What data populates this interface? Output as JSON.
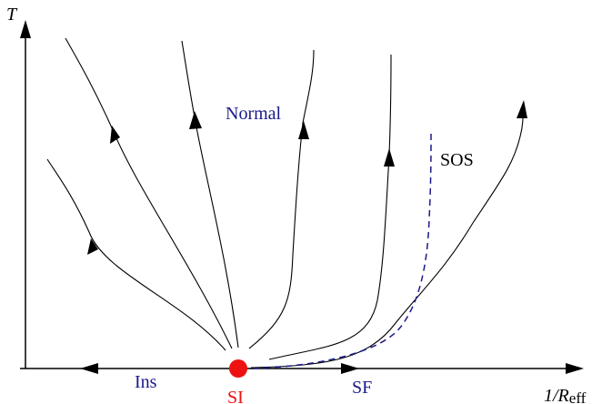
{
  "axes": {
    "y_label": "T",
    "x_label_main": "1/R",
    "x_label_sub": "eff"
  },
  "labels": {
    "normal": "Normal",
    "sos": "SOS",
    "ins": "Ins",
    "si": "SI",
    "sf": "SF"
  },
  "colors": {
    "axis": "#000000",
    "flow_line": "#000000",
    "label_blue": "#1a1a8c",
    "sos_dashed": "#1a1a8c",
    "si_point": "#ee1111"
  }
}
